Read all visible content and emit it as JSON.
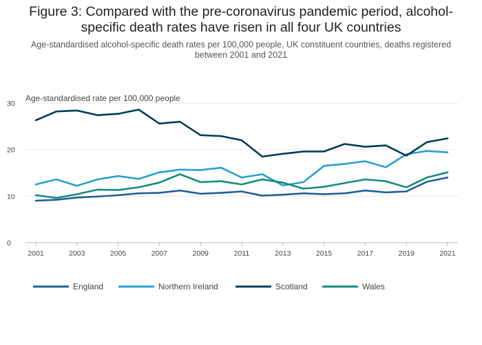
{
  "chart_data": {
    "type": "line",
    "title": "Figure 3: Compared with the pre-coronavirus pandemic period, alcohol-specific death rates have risen in all four UK countries",
    "subtitle": "Age-standardised alcohol-specific death rates per 100,000 people, UK constituent countries, deaths registered between 2001 and 2021",
    "ylabel": "Age-standardised rate per 100,000 people",
    "xlabel": "",
    "x": [
      2001,
      2002,
      2003,
      2004,
      2005,
      2006,
      2007,
      2008,
      2009,
      2010,
      2011,
      2012,
      2013,
      2014,
      2015,
      2016,
      2017,
      2018,
      2019,
      2020,
      2021
    ],
    "xticks": [
      2001,
      2003,
      2005,
      2007,
      2009,
      2011,
      2013,
      2015,
      2017,
      2019,
      2021
    ],
    "yticks": [
      0,
      10,
      20,
      30
    ],
    "ylim": [
      0,
      30
    ],
    "grid": true,
    "legend_position": "bottom",
    "series": [
      {
        "name": "England",
        "color": "#206095",
        "values": [
          9.0,
          9.2,
          9.7,
          9.9,
          10.2,
          10.6,
          10.7,
          11.2,
          10.5,
          10.7,
          11.0,
          10.1,
          10.3,
          10.6,
          10.4,
          10.6,
          11.2,
          10.8,
          11.0,
          13.1,
          14.0
        ]
      },
      {
        "name": "Northern Ireland",
        "color": "#27a0cc",
        "values": [
          12.5,
          13.6,
          12.2,
          13.6,
          14.3,
          13.7,
          15.1,
          15.7,
          15.6,
          16.1,
          14.0,
          14.7,
          12.3,
          13.0,
          16.5,
          16.9,
          17.5,
          16.2,
          19.0,
          19.7,
          19.4
        ]
      },
      {
        "name": "Scotland",
        "color": "#003c57",
        "values": [
          26.3,
          28.2,
          28.4,
          27.4,
          27.7,
          28.6,
          25.6,
          26.0,
          23.1,
          22.9,
          22.0,
          18.5,
          19.1,
          19.6,
          19.6,
          21.2,
          20.6,
          20.9,
          18.7,
          21.6,
          22.4
        ]
      },
      {
        "name": "Wales",
        "color": "#118c7b",
        "values": [
          10.2,
          9.6,
          10.4,
          11.4,
          11.3,
          11.9,
          12.9,
          14.7,
          13.0,
          13.2,
          12.5,
          13.6,
          12.9,
          11.6,
          12.0,
          12.8,
          13.6,
          13.2,
          11.9,
          14.0,
          15.1
        ]
      }
    ]
  }
}
